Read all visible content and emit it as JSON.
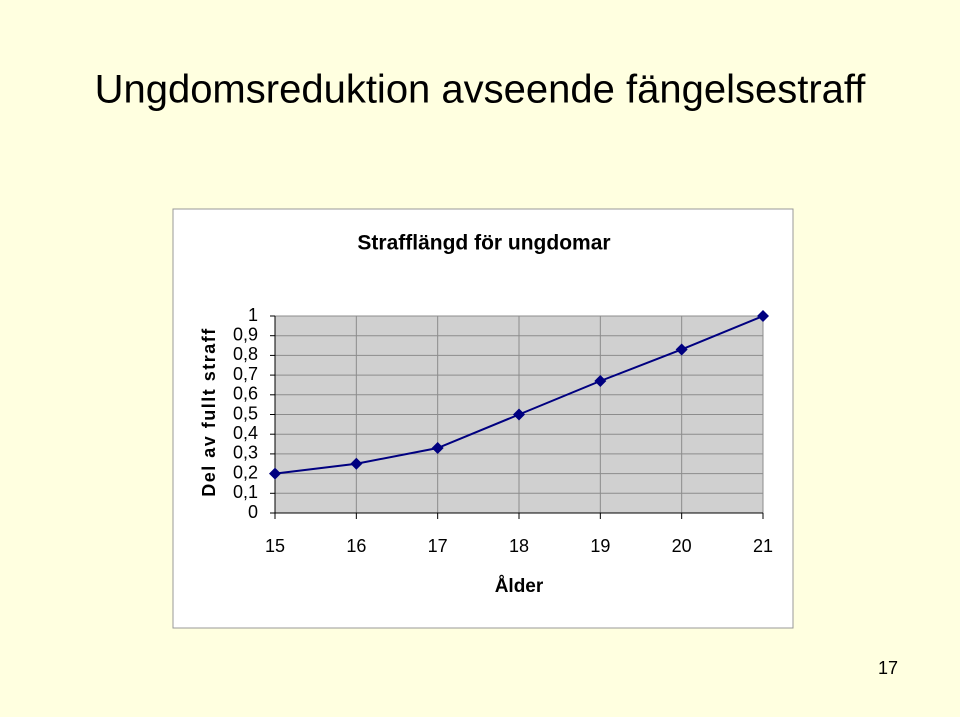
{
  "slide_title": "Ungdomsreduktion avseende fängelsestraff",
  "page_number": "17",
  "chart_data": {
    "type": "line",
    "title": "Strafflängd för ungdomar",
    "xlabel": "Ålder",
    "ylabel": "Del av fullt straff",
    "x": [
      15,
      16,
      17,
      18,
      19,
      20,
      21
    ],
    "values": [
      0.2,
      0.25,
      0.33,
      0.5,
      0.67,
      0.83,
      1.0
    ],
    "color": "#000080",
    "xlim": [
      15,
      21
    ],
    "xticks": [
      15,
      16,
      17,
      18,
      19,
      20,
      21
    ],
    "ylim": [
      0,
      1
    ],
    "yticks": [
      0,
      {
        "value": 0.1,
        "label": "0,1"
      },
      {
        "value": 0.2,
        "label": "0,2"
      },
      {
        "value": 0.3,
        "label": "0,3"
      },
      {
        "value": 0.4,
        "label": "0,4"
      },
      {
        "value": 0.5,
        "label": "0,5"
      },
      {
        "value": 0.6,
        "label": "0,6"
      },
      {
        "value": 0.7,
        "label": "0,7"
      },
      {
        "value": 0.8,
        "label": "0,8"
      },
      {
        "value": 0.9,
        "label": "0,9"
      },
      1
    ],
    "grid": true
  }
}
